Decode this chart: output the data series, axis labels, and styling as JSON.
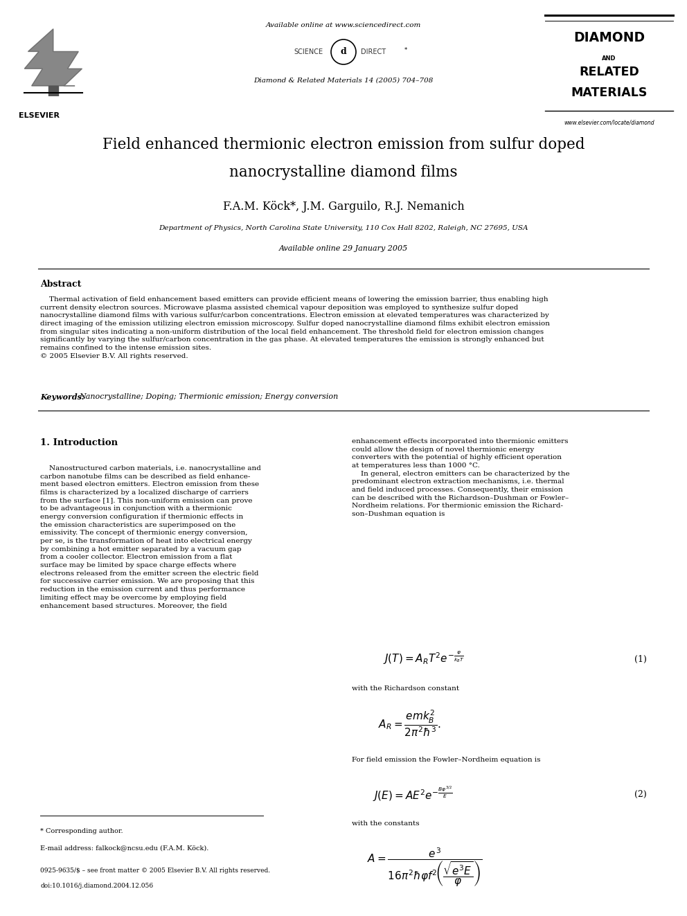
{
  "page_width": 9.92,
  "page_height": 13.23,
  "bg_color": "#ffffff",
  "header_available": "Available online at www.sciencedirect.com",
  "header_scidir": "SCIENCE   (d)   DIRECT*",
  "header_journal": "Diamond & Related Materials 14 (2005) 704–708",
  "elsevier": "ELSEVIER",
  "diamond_and": "AND",
  "diamond_line1": "DIAMOND",
  "diamond_line2": "RELATED",
  "diamond_line3": "MATERIALS",
  "website": "www.elsevier.com/locate/diamond",
  "title_line1": "Field enhanced thermionic electron emission from sulfur doped",
  "title_line2": "nanocrystalline diamond films",
  "authors": "F.A.M. Köck*, J.M. Garguilo, R.J. Nemanich",
  "affiliation": "Department of Physics, North Carolina State University, 110 Cox Hall 8202, Raleigh, NC 27695, USA",
  "avail_date": "Available online 29 January 2005",
  "abstract_head": "Abstract",
  "abstract_body": "    Thermal activation of field enhancement based emitters can provide efficient means of lowering the emission barrier, thus enabling high\ncurrent density electron sources. Microwave plasma assisted chemical vapour deposition was employed to synthesize sulfur doped\nnanocrystalline diamond films with various sulfur/carbon concentrations. Electron emission at elevated temperatures was characterized by\ndirect imaging of the emission utilizing electron emission microscopy. Sulfur doped nanocrystalline diamond films exhibit electron emission\nfrom singular sites indicating a non-uniform distribution of the local field enhancement. The threshold field for electron emission changes\nsignificantly by varying the sulfur/carbon concentration in the gas phase. At elevated temperatures the emission is strongly enhanced but\nremains confined to the intense emission sites.\n© 2005 Elsevier B.V. All rights reserved.",
  "kw_label": "Keywords:",
  "kw_text": "Nanocrystalline; Doping; Thermionic emission; Energy conversion",
  "sec1": "1. Introduction",
  "intro_col1": "    Nanostructured carbon materials, i.e. nanocrystalline and\ncarbon nanotube films can be described as field enhance-\nment based electron emitters. Electron emission from these\nfilms is characterized by a localized discharge of carriers\nfrom the surface [1]. This non-uniform emission can prove\nto be advantageous in conjunction with a thermionic\nenergy conversion configuration if thermionic effects in\nthe emission characteristics are superimposed on the\nemissivity. The concept of thermionic energy conversion,\nper se, is the transformation of heat into electrical energy\nby combining a hot emitter separated by a vacuum gap\nfrom a cooler collector. Electron emission from a flat\nsurface may be limited by space charge effects where\nelectrons released from the emitter screen the electric field\nfor successive carrier emission. We are proposing that this\nreduction in the emission current and thus performance\nlimiting effect may be overcome by employing field\nenhancement based structures. Moreover, the field",
  "intro_col2": "enhancement effects incorporated into thermionic emitters\ncould allow the design of novel thermionic energy\nconverters with the potential of highly efficient operation\nat temperatures less than 1000 °C.\n    In general, electron emitters can be characterized by the\npredominant electron extraction mechanisms, i.e. thermal\nand field induced processes. Consequently, their emission\ncan be described with the Richardson–Dushman or Fowler–\nNordheim relations. For thermionic emission the Richard-\nson–Dushman equation is",
  "eq1_num": "(1)",
  "eq1_after": "with the Richardson constant",
  "eq2_intro": "For field emission the Fowler–Nordheim equation is",
  "eq2_num": "(2)",
  "eq2_after": "with the constants",
  "footnote_corr": "* Corresponding author.",
  "footnote_email": "E-mail address: falkock@ncsu.edu (F.A.M. Köck).",
  "footer1": "0925-9635/$ – see front matter © 2005 Elsevier B.V. All rights reserved.",
  "footer2": "doi:10.1016/j.diamond.2004.12.056"
}
